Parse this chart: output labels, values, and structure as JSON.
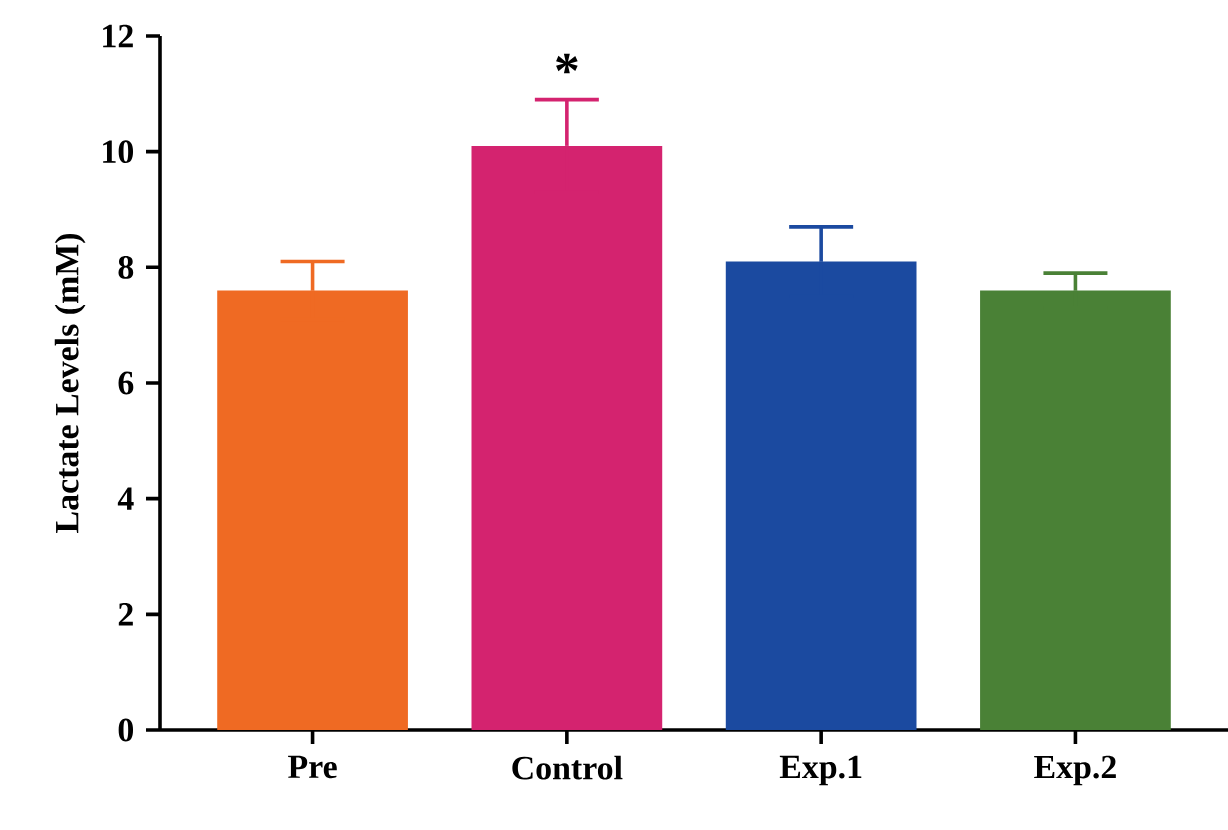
{
  "chart_data": {
    "type": "bar",
    "ylabel": "Lactate Levels (mM)",
    "categories": [
      "Pre",
      "Control",
      "Exp.1",
      "Exp.2"
    ],
    "values": [
      7.6,
      10.1,
      8.1,
      7.6
    ],
    "colors": [
      "#ef6a23",
      "#d4236f",
      "#1b4aa0",
      "#4a8136"
    ],
    "errors": [
      0.5,
      0.8,
      0.6,
      0.3
    ],
    "ylim": [
      0,
      12
    ],
    "yticks": [
      0,
      2,
      4,
      6,
      8,
      10,
      12
    ],
    "annotations": [
      {
        "text": "*",
        "x": "Control",
        "y": 10.9
      }
    ],
    "grid": false
  }
}
